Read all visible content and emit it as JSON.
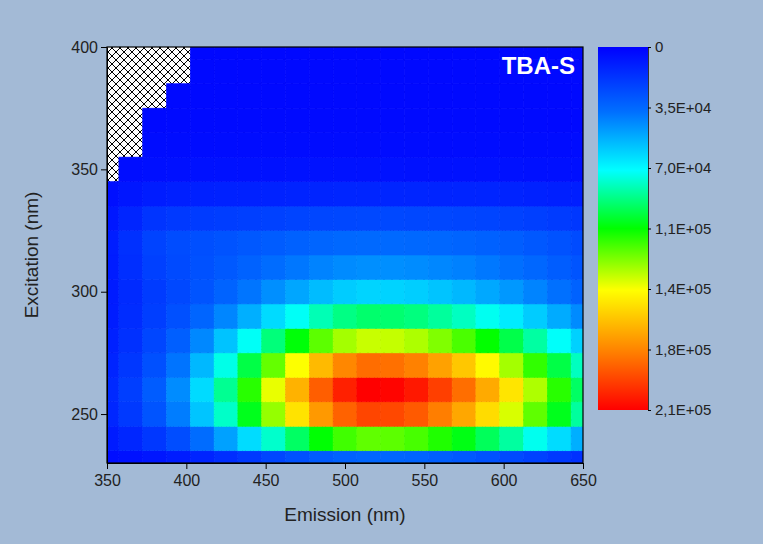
{
  "chart_data": {
    "type": "heatmap",
    "title": "TBA-S",
    "x_label": "Emission (nm)",
    "y_label": "Excitation (nm)",
    "x": [
      350,
      365,
      380,
      395,
      410,
      425,
      440,
      455,
      470,
      485,
      500,
      515,
      530,
      545,
      560,
      575,
      590,
      605,
      620,
      635,
      650
    ],
    "y": [
      230,
      240,
      250,
      260,
      270,
      280,
      290,
      300,
      310,
      320,
      330,
      340,
      350,
      360,
      370,
      380,
      390,
      400
    ],
    "values": [
      [
        4600,
        5700,
        7300,
        9300,
        12100,
        15600,
        19400,
        23500,
        27300,
        30700,
        33200,
        34500,
        34300,
        33600,
        32000,
        30100,
        27600,
        25100,
        22200,
        19400,
        16500
      ],
      [
        9000,
        12900,
        18600,
        26100,
        36500,
        49200,
        63100,
        78100,
        91900,
        104600,
        113900,
        118500,
        117900,
        115000,
        109300,
        102300,
        93100,
        83900,
        73500,
        63100,
        52700
      ],
      [
        12800,
        19300,
        28500,
        40800,
        57800,
        78600,
        101300,
        125900,
        148500,
        169300,
        184400,
        192000,
        191100,
        186300,
        176900,
        165500,
        150400,
        135300,
        118300,
        101300,
        84300
      ],
      [
        13800,
        20800,
        30900,
        44400,
        63000,
        85800,
        110600,
        137600,
        162400,
        185200,
        201700,
        210000,
        209000,
        203800,
        193400,
        181000,
        164500,
        147900,
        129300,
        110600,
        92000
      ],
      [
        12300,
        18400,
        27100,
        38700,
        54800,
        74400,
        95800,
        119000,
        140400,
        160100,
        174400,
        181500,
        180600,
        176100,
        167200,
        156500,
        142200,
        128000,
        111900,
        95800,
        79800
      ],
      [
        10800,
        16200,
        23600,
        32200,
        43500,
        57400,
        72500,
        88900,
        104000,
        117900,
        128000,
        133000,
        132400,
        129200,
        122900,
        115400,
        105300,
        95200,
        83700,
        72100,
        60600
      ],
      [
        9500,
        14700,
        21000,
        27000,
        34100,
        42900,
        52500,
        62900,
        72400,
        81200,
        87600,
        90800,
        90400,
        88400,
        84400,
        79600,
        73200,
        66900,
        59300,
        51700,
        44100
      ],
      [
        9000,
        14200,
        20000,
        24200,
        28400,
        33500,
        39000,
        45000,
        50600,
        55700,
        59400,
        61200,
        61000,
        59800,
        57500,
        54700,
        51000,
        47300,
        42600,
        37800,
        33100
      ],
      [
        9400,
        15400,
        21700,
        25000,
        27300,
        30100,
        33100,
        36400,
        39400,
        42200,
        44200,
        45200,
        45100,
        44400,
        43200,
        41700,
        39700,
        37600,
        34600,
        31400,
        28300
      ],
      [
        9700,
        16100,
        22700,
        25500,
        26700,
        28000,
        29600,
        31200,
        32700,
        34100,
        35100,
        35600,
        35500,
        35200,
        34600,
        33800,
        32800,
        31800,
        29700,
        27600,
        25400
      ],
      [
        7800,
        12500,
        17400,
        19300,
        19800,
        20500,
        21300,
        22100,
        22900,
        23500,
        24000,
        24300,
        24300,
        24100,
        23800,
        23400,
        22900,
        22400,
        21100,
        19800,
        18500
      ],
      [
        5200,
        7400,
        9600,
        10500,
        10700,
        11000,
        11300,
        11600,
        11900,
        12200,
        12400,
        12500,
        12500,
        12400,
        12300,
        12200,
        12000,
        11800,
        11200,
        10600,
        10100
      ],
      [
        null,
        4400,
        5200,
        5500,
        5600,
        5700,
        5800,
        5900,
        6000,
        6000,
        6000,
        6000,
        6000,
        5900,
        5900,
        5800,
        5800,
        5700,
        5500,
        5300,
        5200
      ],
      [
        null,
        null,
        3900,
        4000,
        4000,
        4100,
        4100,
        4100,
        4200,
        4200,
        4200,
        4200,
        4200,
        4200,
        4100,
        4100,
        4100,
        4000,
        4000,
        3900,
        3900
      ],
      [
        null,
        null,
        3200,
        3300,
        3300,
        3300,
        3400,
        3400,
        3400,
        3400,
        3400,
        3400,
        3400,
        3400,
        3400,
        3300,
        3300,
        3300,
        3300,
        3200,
        3200
      ],
      [
        null,
        null,
        null,
        3000,
        3000,
        3100,
        3100,
        3100,
        3100,
        3100,
        3100,
        3100,
        3100,
        3100,
        3100,
        3100,
        3000,
        3000,
        3000,
        3000,
        3000
      ],
      [
        null,
        null,
        null,
        null,
        2900,
        2900,
        3000,
        3000,
        3000,
        3000,
        3000,
        3000,
        3000,
        3000,
        3000,
        3000,
        2900,
        2900,
        2900,
        2900,
        2900
      ],
      [
        null,
        null,
        null,
        null,
        2800,
        2800,
        2800,
        2800,
        2800,
        2800,
        2800,
        2800,
        2800,
        2800,
        2800,
        2800,
        2800,
        2800,
        2800,
        2800,
        2800
      ]
    ],
    "xlim": [
      350,
      650
    ],
    "ylim": [
      230,
      400
    ],
    "xticks": [
      350,
      400,
      450,
      500,
      550,
      600,
      650
    ],
    "yticks": [
      250,
      300,
      350,
      400
    ],
    "colorbar": {
      "range": [
        0,
        210000
      ],
      "ticks": [
        0,
        {
          "value": 35000,
          "label": "3,5E+04"
        },
        {
          "value": 70000,
          "label": "7,0E+04"
        },
        {
          "value": 105000,
          "label": "1,1E+05"
        },
        {
          "value": 140000,
          "label": "1,4E+05"
        },
        {
          "value": 175000,
          "label": "1,8E+05"
        },
        {
          "value": 210000,
          "label": "2,1E+05"
        }
      ]
    }
  }
}
